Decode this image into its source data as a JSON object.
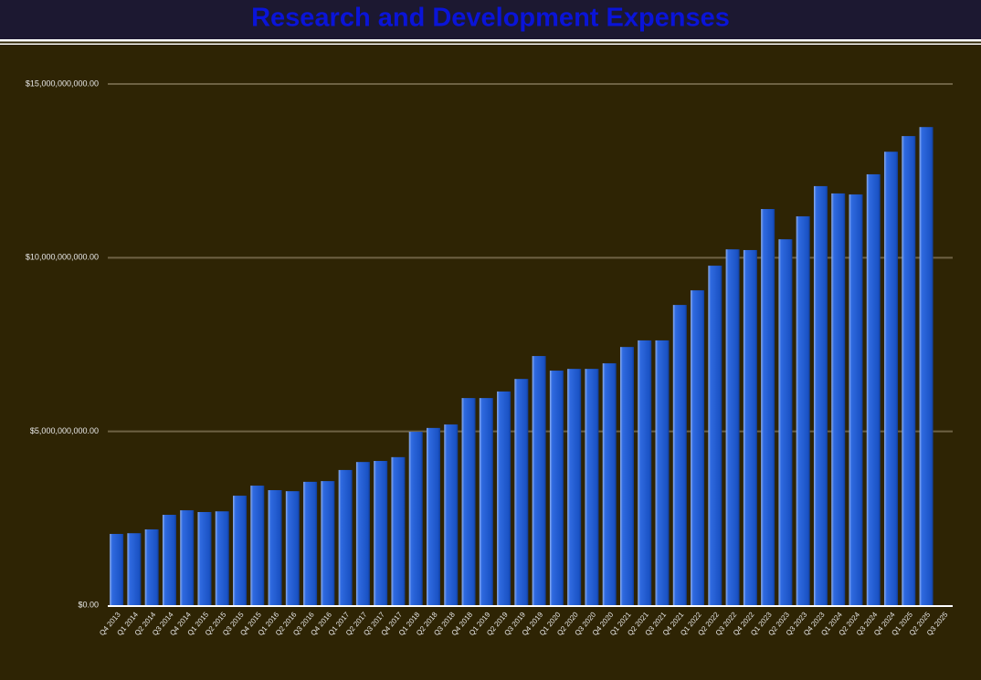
{
  "chart_data": {
    "type": "bar",
    "title": "Research and Development Expenses",
    "categories": [
      "Q4 2013",
      "Q1 2014",
      "Q2 2014",
      "Q3 2014",
      "Q4 2014",
      "Q1 2015",
      "Q2 2015",
      "Q3 2015",
      "Q4 2015",
      "Q1 2016",
      "Q2 2016",
      "Q3 2016",
      "Q4 2016",
      "Q1 2017",
      "Q2 2017",
      "Q3 2017",
      "Q4 2017",
      "Q1 2018",
      "Q2 2018",
      "Q3 2018",
      "Q4 2018",
      "Q1 2019",
      "Q2 2019",
      "Q3 2019",
      "Q4 2019",
      "Q1 2020",
      "Q2 2020",
      "Q3 2020",
      "Q4 2020",
      "Q1 2021",
      "Q2 2021",
      "Q3 2021",
      "Q4 2021",
      "Q1 2022",
      "Q2 2022",
      "Q3 2022",
      "Q4 2022",
      "Q1 2023",
      "Q2 2023",
      "Q3 2023",
      "Q4 2023",
      "Q1 2024",
      "Q2 2024",
      "Q3 2024",
      "Q4 2024",
      "Q1 2025",
      "Q2 2025",
      "Q3 2025"
    ],
    "values": [
      2050000000,
      2070000000,
      2180000000,
      2600000000,
      2730000000,
      2680000000,
      2700000000,
      3150000000,
      3440000000,
      3310000000,
      3280000000,
      3550000000,
      3570000000,
      3890000000,
      4120000000,
      4150000000,
      4260000000,
      4990000000,
      5100000000,
      5200000000,
      5960000000,
      5960000000,
      6150000000,
      6510000000,
      7170000000,
      6750000000,
      6800000000,
      6800000000,
      6960000000,
      7430000000,
      7620000000,
      7620000000,
      8640000000,
      9060000000,
      9770000000,
      10240000000,
      10220000000,
      11400000000,
      10530000000,
      11190000000,
      12060000000,
      11850000000,
      11820000000,
      12400000000,
      13050000000,
      13500000000,
      13760000000,
      null
    ],
    "color": "#1f5bd0",
    "ylim": [
      0,
      15000000000
    ],
    "yticks": [
      {
        "value": 0,
        "label": "$0.00"
      },
      {
        "value": 5000000000,
        "label": "$5,000,000,000.00"
      },
      {
        "value": 10000000000,
        "label": "$10,000,000,000.00"
      },
      {
        "value": 15000000000,
        "label": "$15,000,000,000.00"
      }
    ],
    "grid": true
  }
}
